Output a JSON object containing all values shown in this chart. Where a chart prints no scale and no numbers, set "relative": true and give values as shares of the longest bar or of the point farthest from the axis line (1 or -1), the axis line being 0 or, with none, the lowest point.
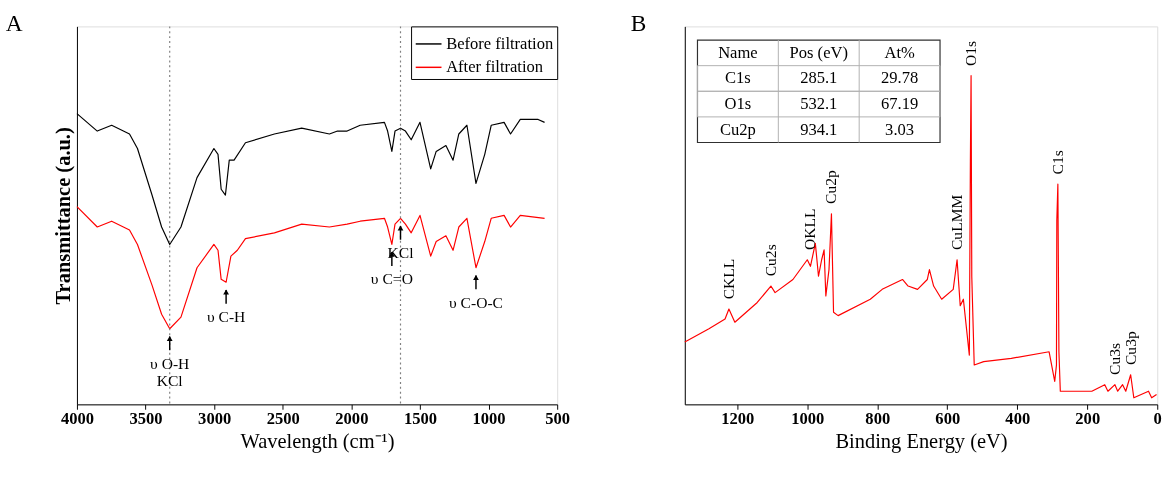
{
  "chart_data": [
    {
      "type": "line",
      "title": "A",
      "xlabel": "Wavelength (cm⁻¹)",
      "ylabel": "Transmittance (a.u.)",
      "relative": true,
      "xlim": [
        4000,
        500
      ],
      "xticks": [
        4000,
        3500,
        3000,
        2500,
        2000,
        1500,
        1000,
        500
      ],
      "legend": "top right",
      "series": [
        {
          "name": "Before filtration",
          "color": "#000000",
          "x": [
            4000,
            3852,
            3747,
            3617,
            3559,
            3453,
            3383,
            3324,
            3242,
            3125,
            3002,
            2972,
            2949,
            2918,
            2890,
            2855,
            2772,
            2561,
            2362,
            2160,
            2101,
            2031,
            1936,
            1759,
            1736,
            1705,
            1682,
            1642,
            1606,
            1564,
            1500,
            1422,
            1382,
            1311,
            1259,
            1217,
            1158,
            1092,
            1028,
            981,
            887,
            840,
            769,
            639,
            592
          ],
          "values": [
            1.0,
            0.94,
            0.96,
            0.93,
            0.88,
            0.72,
            0.61,
            0.55,
            0.61,
            0.78,
            0.88,
            0.86,
            0.74,
            0.72,
            0.84,
            0.84,
            0.9,
            0.93,
            0.95,
            0.93,
            0.94,
            0.94,
            0.96,
            0.97,
            0.94,
            0.87,
            0.94,
            0.95,
            0.94,
            0.91,
            0.97,
            0.81,
            0.87,
            0.89,
            0.84,
            0.93,
            0.96,
            0.76,
            0.86,
            0.96,
            0.97,
            0.93,
            0.98,
            0.98,
            0.97
          ]
        },
        {
          "name": "After filtration",
          "color": "#ff0000",
          "x": [
            4000,
            3852,
            3747,
            3617,
            3559,
            3453,
            3383,
            3324,
            3242,
            3125,
            3002,
            2972,
            2949,
            2913,
            2878,
            2831,
            2772,
            2561,
            2362,
            2160,
            2031,
            1936,
            1759,
            1736,
            1705,
            1682,
            1642,
            1606,
            1564,
            1500,
            1422,
            1382,
            1311,
            1259,
            1217,
            1158,
            1092,
            1028,
            981,
            887,
            840,
            769,
            592
          ],
          "values": [
            0.68,
            0.61,
            0.63,
            0.6,
            0.55,
            0.41,
            0.31,
            0.26,
            0.3,
            0.47,
            0.55,
            0.53,
            0.43,
            0.42,
            0.51,
            0.53,
            0.57,
            0.59,
            0.62,
            0.61,
            0.62,
            0.63,
            0.64,
            0.61,
            0.55,
            0.62,
            0.64,
            0.62,
            0.59,
            0.65,
            0.51,
            0.56,
            0.58,
            0.53,
            0.61,
            0.64,
            0.47,
            0.56,
            0.64,
            0.65,
            0.61,
            0.65,
            0.64
          ]
        }
      ],
      "ref_lines": [
        {
          "axis": "x",
          "value": 3324,
          "color": "#808080",
          "line_style": "dotted"
        },
        {
          "axis": "x",
          "value": 1642,
          "color": "#808080",
          "line_style": "dotted"
        }
      ],
      "annotations": [
        {
          "text": "υ O-H",
          "x": 3324,
          "y": 0.26
        },
        {
          "text": "KCl",
          "x": 3324,
          "y": 0.26
        },
        {
          "text": "υ C-H",
          "x": 2913,
          "y": 0.42
        },
        {
          "text": "υ C=O",
          "x": 1705,
          "y": 0.55
        },
        {
          "text": "KCl",
          "x": 1642,
          "y": 0.64
        },
        {
          "text": "υ C-O-C",
          "x": 1092,
          "y": 0.47
        }
      ]
    },
    {
      "type": "line",
      "title": "B",
      "xlabel": "Binding Energy (eV)",
      "relative": true,
      "xlim": [
        1350,
        0
      ],
      "xticks": [
        1200,
        1000,
        800,
        600,
        400,
        200,
        0
      ],
      "series": [
        {
          "color": "#ff0000",
          "x": [
            1350,
            1281,
            1235,
            1224,
            1207,
            1143,
            1104,
            1092,
            1041,
            1000,
            991,
            977,
            968,
            959,
            952,
            947,
            938,
            931,
            925,
            912,
            820,
            786,
            728,
            712,
            685,
            657,
            651,
            639,
            616,
            583,
            572,
            563,
            554,
            537,
            534,
            532,
            530,
            523,
            496,
            417,
            309,
            293,
            288,
            287,
            284,
            281,
            277,
            187,
            150,
            141,
            121,
            113,
            99,
            90,
            76,
            67,
            25,
            16,
            2
          ],
          "values": [
            0.19,
            0.23,
            0.26,
            0.29,
            0.25,
            0.31,
            0.36,
            0.34,
            0.38,
            0.44,
            0.42,
            0.49,
            0.39,
            0.44,
            0.47,
            0.33,
            0.41,
            0.58,
            0.28,
            0.27,
            0.32,
            0.35,
            0.38,
            0.36,
            0.35,
            0.38,
            0.41,
            0.36,
            0.32,
            0.35,
            0.44,
            0.3,
            0.32,
            0.15,
            0.74,
            1.0,
            0.39,
            0.12,
            0.13,
            0.14,
            0.16,
            0.07,
            0.12,
            0.56,
            0.67,
            0.16,
            0.04,
            0.04,
            0.06,
            0.04,
            0.06,
            0.04,
            0.06,
            0.04,
            0.09,
            0.02,
            0.04,
            0.02,
            0.03
          ]
        }
      ],
      "annotations": [
        "Name",
        "Pos (eV)",
        "At%",
        "C1s",
        "285.1",
        "29.78",
        "O1s",
        "532.1",
        "67.19",
        "Cu2p",
        "934.1",
        "3.03",
        {
          "text": "CKLL",
          "x": 1224,
          "y": 0.29
        },
        {
          "text": "Cu2s",
          "x": 1104,
          "y": 0.36
        },
        {
          "text": "OKLL",
          "x": 991,
          "y": 0.44
        },
        {
          "text": "Cu2p",
          "x": 931,
          "y": 0.58
        },
        {
          "text": "CuLMM",
          "x": 572,
          "y": 0.44
        },
        {
          "text": "O1s",
          "x": 532,
          "y": 1.0
        },
        {
          "text": "C1s",
          "x": 284,
          "y": 0.67
        },
        {
          "text": "Cu3s",
          "x": 121,
          "y": 0.06
        },
        {
          "text": "Cu3p",
          "x": 76,
          "y": 0.09
        }
      ]
    }
  ]
}
